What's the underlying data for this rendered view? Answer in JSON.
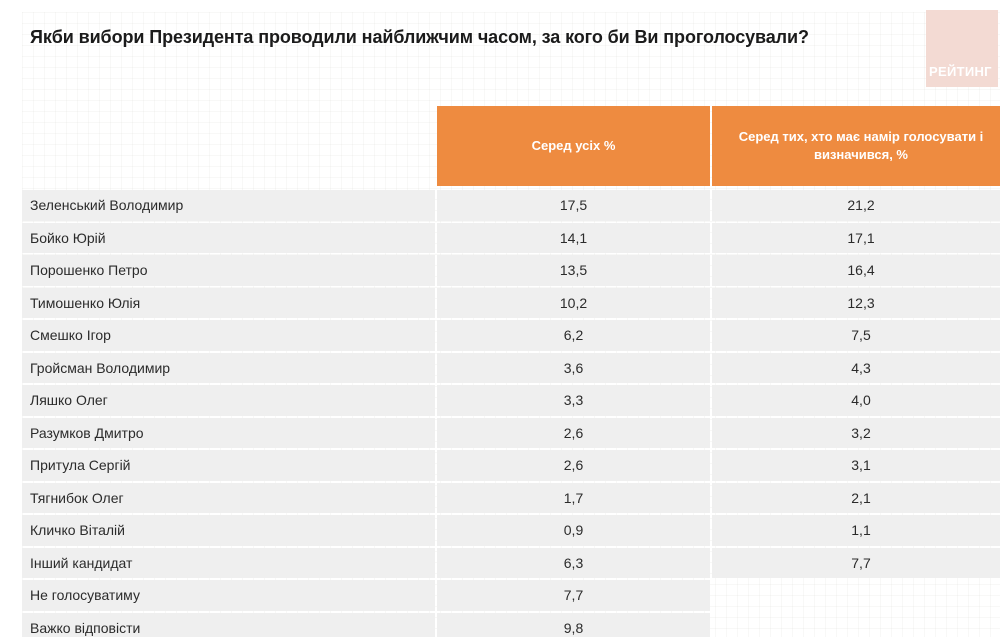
{
  "logo": {
    "text": "РЕЙТИНГ"
  },
  "colors": {
    "header_bg": "#EE8B40",
    "header_text": "#FFFFFF",
    "row_bg": "#EFEFEF",
    "logo_bg": "#F3DAD3",
    "logo_text": "#FFFFFF",
    "title_text": "#1B1B1B",
    "body_text": "#2B2B2B"
  },
  "chart_data": {
    "type": "table",
    "title": "Якби вибори Президента проводили найближчим часом, за кого би Ви проголосували?",
    "columns": [
      "Серед усіх %",
      "Серед тих, хто має намір голосувати і визначився, %"
    ],
    "rows": [
      {
        "label": "Зеленський Володимир",
        "among_all": "17,5",
        "among_decided": "21,2"
      },
      {
        "label": "Бойко Юрій",
        "among_all": "14,1",
        "among_decided": "17,1"
      },
      {
        "label": "Порошенко Петро",
        "among_all": "13,5",
        "among_decided": "16,4"
      },
      {
        "label": "Тимошенко Юлія",
        "among_all": "10,2",
        "among_decided": "12,3"
      },
      {
        "label": "Смешко Ігор",
        "among_all": "6,2",
        "among_decided": "7,5"
      },
      {
        "label": "Гройсман Володимир",
        "among_all": "3,6",
        "among_decided": "4,3"
      },
      {
        "label": "Ляшко Олег",
        "among_all": "3,3",
        "among_decided": "4,0"
      },
      {
        "label": "Разумков Дмитро",
        "among_all": "2,6",
        "among_decided": "3,2"
      },
      {
        "label": "Притула Сергій",
        "among_all": "2,6",
        "among_decided": "3,1"
      },
      {
        "label": "Тягнибок Олег",
        "among_all": "1,7",
        "among_decided": "2,1"
      },
      {
        "label": "Кличко Віталій",
        "among_all": "0,9",
        "among_decided": "1,1"
      },
      {
        "label": "Інший кандидат",
        "among_all": "6,3",
        "among_decided": "7,7"
      },
      {
        "label": "Не голосуватиму",
        "among_all": "7,7",
        "among_decided": ""
      },
      {
        "label": "Важко відповісти",
        "among_all": "9,8",
        "among_decided": ""
      }
    ]
  }
}
